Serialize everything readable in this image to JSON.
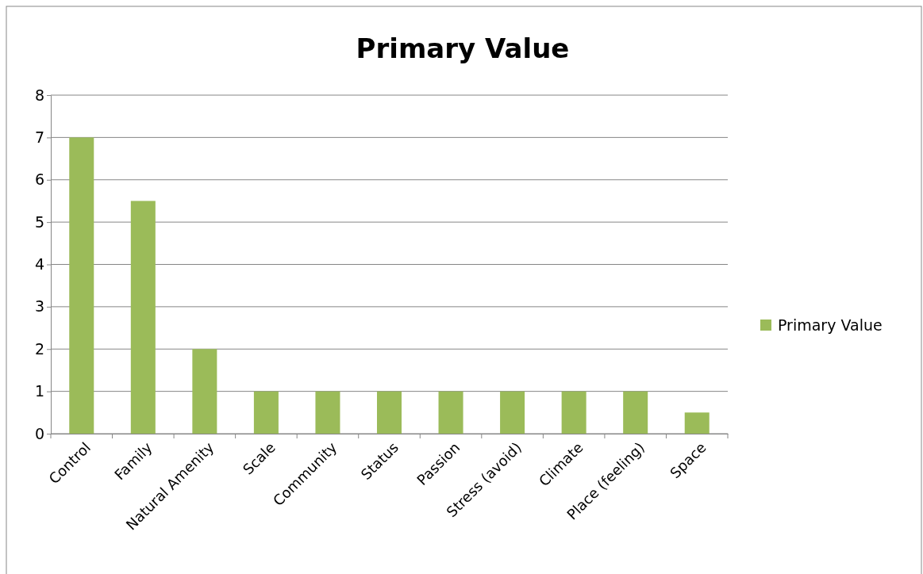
{
  "chart_data": {
    "type": "bar",
    "title": "Primary Value",
    "categories": [
      "Control",
      "Family",
      "Natural Amenity",
      "Scale",
      "Community",
      "Status",
      "Passion",
      "Stress (avoid)",
      "Climate",
      "Place (feeling)",
      "Space"
    ],
    "series": [
      {
        "name": "Primary Value",
        "color": "#9bbb59",
        "values": [
          7,
          5.5,
          2,
          1,
          1,
          1,
          1,
          1,
          1,
          1,
          0.5
        ]
      }
    ],
    "ylim": [
      0,
      8
    ],
    "yticks": [
      0,
      1,
      2,
      3,
      4,
      5,
      6,
      7,
      8
    ],
    "grid": "y",
    "legend": "right"
  }
}
